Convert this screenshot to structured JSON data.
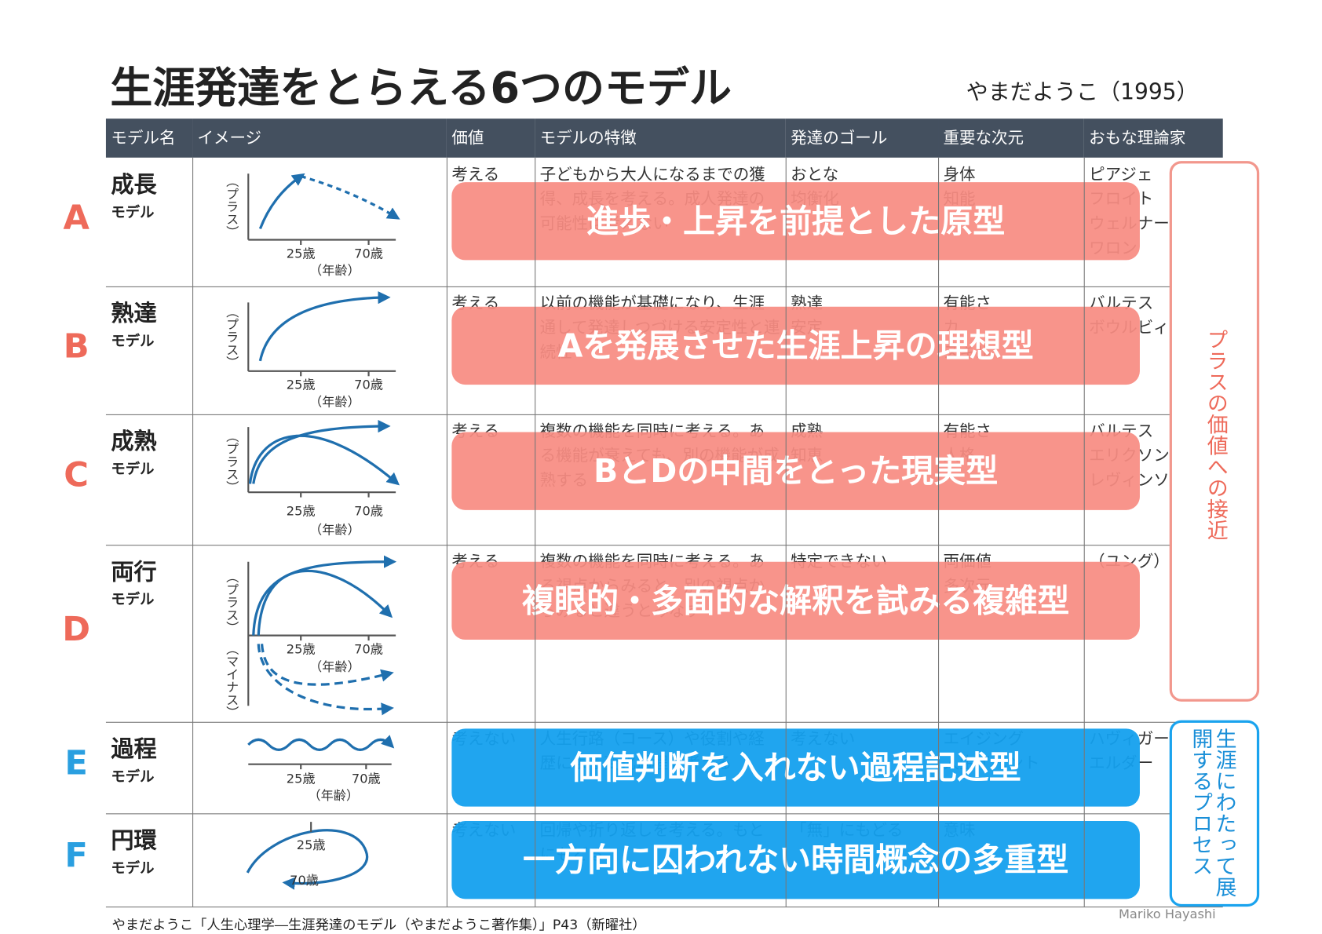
{
  "header": {
    "title": "生涯発達をとらえる6つのモデル",
    "author": "やまだようこ（1995）"
  },
  "table": {
    "columns": [
      "モデル名",
      "イメージ",
      "価値",
      "モデルの特徴",
      "発達のゴール",
      "重要な次元",
      "おもな理論家"
    ],
    "rows": [
      {
        "letter": "A",
        "name": "成長",
        "suffix": "モデル",
        "graph": {
          "y_labels": [
            "（プラス）"
          ],
          "x_labels": [
            "25歳",
            "70歳",
            "（年齢）"
          ]
        },
        "value": "考える",
        "feature": "子どもから大人になるまでの獲得、成長を考える。成人発達の可能性は考えない",
        "goal": [
          "おとな",
          "均衡化"
        ],
        "dimension": [
          "身体",
          "知能"
        ],
        "theorists": [
          "ピアジェ",
          "フロイト",
          "ウェルナー",
          "ワロン"
        ],
        "banner": "進歩・上昇を前提とした原型"
      },
      {
        "letter": "B",
        "name": "熟達",
        "suffix": "モデル",
        "graph": {
          "y_labels": [
            "（プラス）"
          ],
          "x_labels": [
            "25歳",
            "70歳",
            "（年齢）"
          ]
        },
        "value": "考える",
        "feature": "以前の機能が基礎になり、生涯通して発達しつづける安定性と連続性",
        "goal": [
          "熟達",
          "安定"
        ],
        "dimension": [
          "有能さ",
          "カ",
          "スキル"
        ],
        "theorists": [
          "バルテス",
          "ボウルビィ"
        ],
        "banner": "Aを発展させた生涯上昇の理想型"
      },
      {
        "letter": "C",
        "name": "成熟",
        "suffix": "モデル",
        "graph": {
          "y_labels": [
            "（プラス）"
          ],
          "x_labels": [
            "25歳",
            "70歳",
            "（年齢）"
          ]
        },
        "value": "考える",
        "feature": "複数の機能を同時に考える。ある機能が衰えても、別の機能が成熟する",
        "goal": [
          "成熟",
          "知恵"
        ],
        "dimension": [
          "有能さ",
          "人格"
        ],
        "theorists": [
          "バルテス",
          "エリクソン",
          "レヴィンソン"
        ],
        "banner": "BとDの中間をとった現実型"
      },
      {
        "letter": "D",
        "name": "両行",
        "suffix": "モデル",
        "graph": {
          "y_labels": [
            "（プラス）",
            "（マイナス）"
          ],
          "x_labels": [
            "25歳",
            "70歳",
            "（年齢）"
          ]
        },
        "value": "考える",
        "feature": "複数の機能を同時に考える。ある視点からみると、別の視点からみると違うとみなす",
        "goal": [
          "特定できない"
        ],
        "dimension": [
          "両価値",
          "多次元"
        ],
        "theorists": [
          "（ユング）"
        ],
        "banner": "複眼的・多面的な解釈を試みる複雑型"
      },
      {
        "letter": "E",
        "name": "過程",
        "suffix": "モデル",
        "graph": {
          "y_labels": [],
          "x_labels": [
            "25歳",
            "70歳",
            "（年齢）"
          ]
        },
        "value": "考えない",
        "feature": "人生行路（コース）や役割や経歴による変化過程を考える",
        "goal": [
          "考えない"
        ],
        "dimension": [
          "エイジング",
          "人生イベント"
        ],
        "theorists": [
          "ハヴィガースト",
          "エルダー"
        ],
        "banner": "価値判断を入れない過程記述型"
      },
      {
        "letter": "F",
        "name": "円環",
        "suffix": "モデル",
        "graph": {
          "y_labels": [],
          "x_labels": [
            "25歳",
            "70歳"
          ]
        },
        "value": "考えない",
        "feature": "回帰や折り返しを考える。もとにもどる",
        "goal": [
          "「無」にもどる"
        ],
        "dimension": [
          "意味"
        ],
        "theorists": [],
        "banner": "一方向に囚われない時間概念の多重型"
      }
    ]
  },
  "side_labels": {
    "plus": "プラスの価値への接近",
    "process": "生涯にわたって展開するプロセス"
  },
  "footer": {
    "citation": "やまだようこ「人生心理学―生涯発達のモデル（やまだようこ著作集）」P43（新曜社）",
    "credit": "Mariko Hayashi"
  }
}
